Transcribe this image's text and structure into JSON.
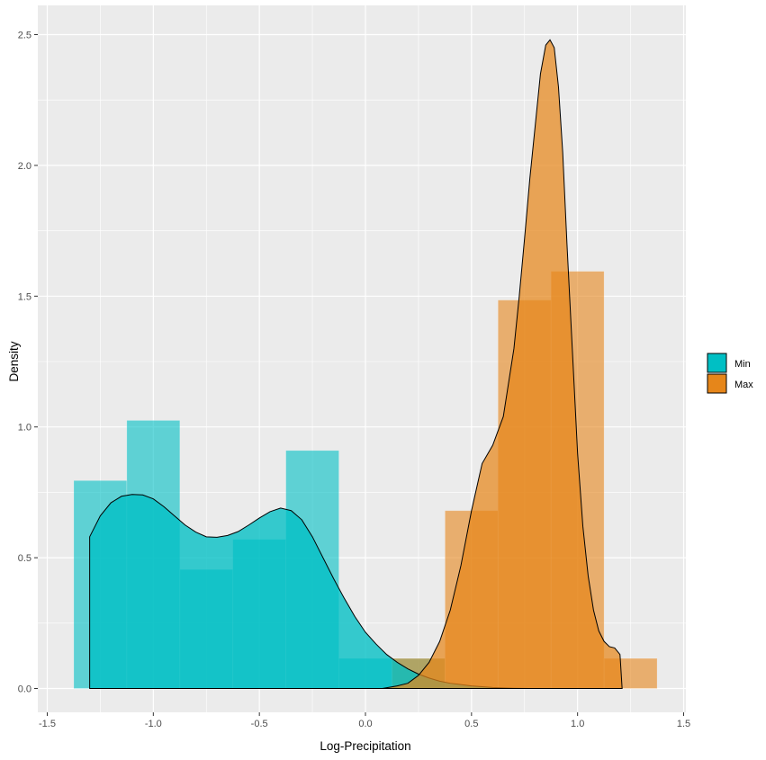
{
  "chart_data": {
    "type": "histogram-density",
    "xlabel": "Log-Precipitation",
    "ylabel": "Density",
    "xlim": [
      -1.5,
      1.5
    ],
    "ylim": [
      0,
      2.5
    ],
    "x_ticks": [
      -1.5,
      -1.0,
      -0.5,
      0.0,
      0.5,
      1.0,
      1.5
    ],
    "x_tick_labels": [
      "-1.5",
      "-1.0",
      "-0.5",
      "0.0",
      "0.5",
      "1.0",
      "1.5"
    ],
    "y_ticks": [
      0.0,
      0.5,
      1.0,
      1.5,
      2.0,
      2.5
    ],
    "y_tick_labels": [
      "0.0",
      "0.5",
      "1.0",
      "1.5",
      "2.0",
      "2.5"
    ],
    "grid": true,
    "legend_position": "right",
    "series": [
      {
        "name": "Min",
        "color": "#00BFC4",
        "histogram": {
          "bin_edges": [
            -1.375,
            -1.125,
            -0.875,
            -0.625,
            -0.375,
            -0.125,
            0.125,
            0.375
          ],
          "densities": [
            0.795,
            1.025,
            0.455,
            0.57,
            0.91,
            0.115,
            0.115
          ]
        },
        "density_curve": {
          "x": [
            -1.3,
            -1.25,
            -1.2,
            -1.15,
            -1.1,
            -1.05,
            -1.0,
            -0.95,
            -0.9,
            -0.85,
            -0.8,
            -0.75,
            -0.7,
            -0.65,
            -0.6,
            -0.55,
            -0.5,
            -0.45,
            -0.4,
            -0.35,
            -0.3,
            -0.25,
            -0.2,
            -0.15,
            -0.1,
            -0.05,
            0.0,
            0.05,
            0.1,
            0.15,
            0.2,
            0.25,
            0.3,
            0.35,
            0.4,
            0.5,
            0.6,
            0.7,
            0.77
          ],
          "y": [
            0.58,
            0.66,
            0.71,
            0.735,
            0.742,
            0.74,
            0.725,
            0.695,
            0.66,
            0.625,
            0.598,
            0.58,
            0.578,
            0.585,
            0.6,
            0.625,
            0.652,
            0.676,
            0.69,
            0.68,
            0.645,
            0.58,
            0.5,
            0.42,
            0.345,
            0.275,
            0.215,
            0.17,
            0.13,
            0.1,
            0.075,
            0.055,
            0.04,
            0.028,
            0.02,
            0.01,
            0.004,
            0.001,
            0.0
          ]
        }
      },
      {
        "name": "Max",
        "color": "#E6861A",
        "histogram": {
          "bin_edges": [
            0.125,
            0.375,
            0.625,
            0.875,
            1.125,
            1.375
          ],
          "densities": [
            0.115,
            0.68,
            1.485,
            1.595,
            0.115
          ]
        },
        "density_curve": {
          "x": [
            0.08,
            0.15,
            0.2,
            0.25,
            0.3,
            0.35,
            0.4,
            0.45,
            0.5,
            0.55,
            0.6,
            0.65,
            0.7,
            0.725,
            0.75,
            0.775,
            0.8,
            0.825,
            0.85,
            0.87,
            0.89,
            0.91,
            0.93,
            0.95,
            0.975,
            1.0,
            1.025,
            1.05,
            1.075,
            1.1,
            1.125,
            1.15,
            1.175,
            1.2,
            1.21
          ],
          "y": [
            0.0,
            0.01,
            0.02,
            0.05,
            0.1,
            0.18,
            0.3,
            0.47,
            0.68,
            0.86,
            0.93,
            1.04,
            1.3,
            1.5,
            1.72,
            1.95,
            2.15,
            2.35,
            2.46,
            2.48,
            2.45,
            2.3,
            2.05,
            1.7,
            1.3,
            0.9,
            0.62,
            0.43,
            0.3,
            0.22,
            0.18,
            0.16,
            0.155,
            0.13,
            0.0
          ]
        }
      }
    ]
  }
}
